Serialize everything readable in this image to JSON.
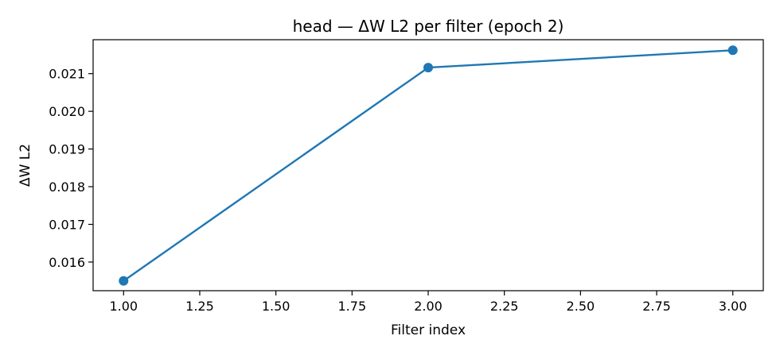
{
  "chart_data": {
    "type": "line",
    "title": "head — ΔW L2 per filter (epoch 2)",
    "xlabel": "Filter index",
    "ylabel": "ΔW L2",
    "xlim": [
      0.9,
      3.1
    ],
    "ylim": [
      0.01524,
      0.0219
    ],
    "xticks": [
      1.0,
      1.25,
      1.5,
      1.75,
      2.0,
      2.25,
      2.5,
      2.75,
      3.0
    ],
    "xtick_labels": [
      "1.00",
      "1.25",
      "1.50",
      "1.75",
      "2.00",
      "2.25",
      "2.50",
      "2.75",
      "3.00"
    ],
    "yticks": [
      0.016,
      0.017,
      0.018,
      0.019,
      0.02,
      0.021
    ],
    "ytick_labels": [
      "0.016",
      "0.017",
      "0.018",
      "0.019",
      "0.020",
      "0.021"
    ],
    "grid": false,
    "series": [
      {
        "x": [
          1,
          2,
          3
        ],
        "values": [
          0.0155,
          0.02116,
          0.02162
        ],
        "color": "#1f77b4",
        "marker": "circle"
      }
    ]
  }
}
